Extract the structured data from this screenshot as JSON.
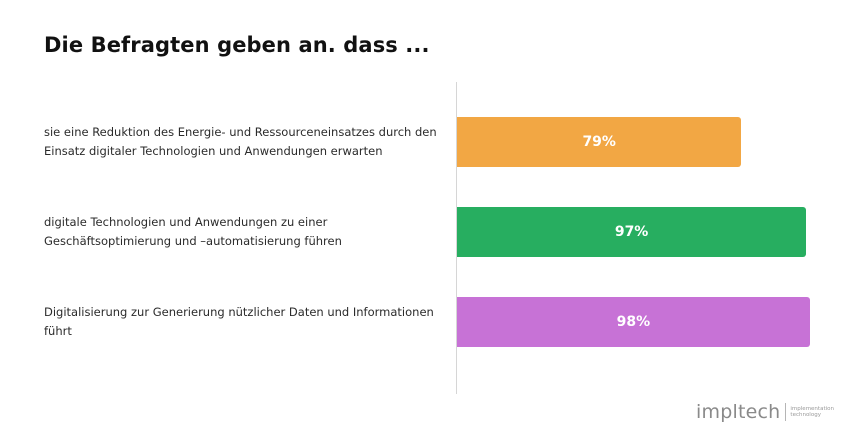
{
  "chart_data": {
    "type": "bar",
    "orientation": "horizontal",
    "title": "Die Befragten geben an. dass ...",
    "categories": [
      "sie eine Reduktion des Energie- und Ressourceneinsatzes durch den Einsatz digitaler Technologien und Anwendungen erwarten",
      "digitale Technologien und Anwendungen zu einer Geschäftsoptimierung und –automatisierung führen",
      "Digitalisierung zur Generierung nützlicher Daten und Informationen führt"
    ],
    "values": [
      79,
      97,
      98
    ],
    "value_labels": [
      "79%",
      "97%",
      "98%"
    ],
    "colors": [
      "#f2a744",
      "#27ae60",
      "#c772d6"
    ],
    "xlim": [
      0,
      100
    ],
    "grid": false,
    "legend": "none"
  },
  "logo": {
    "wordmark": "impltech",
    "tagline_1": "implementation",
    "tagline_2": "technology"
  }
}
